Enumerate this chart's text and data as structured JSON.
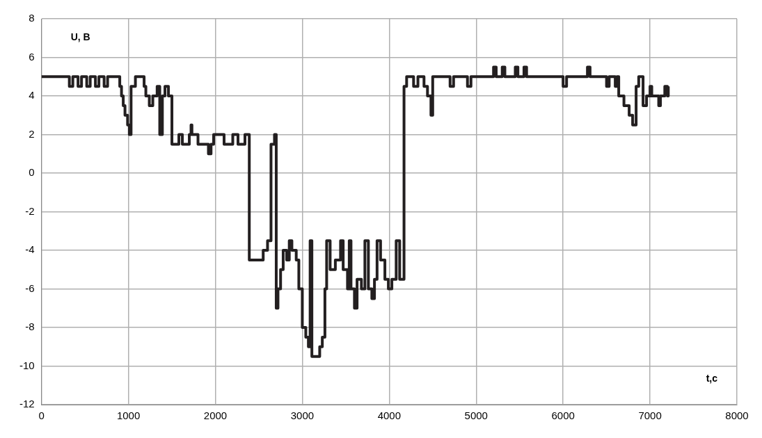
{
  "chart_data": {
    "type": "step",
    "xlabel": "t,c",
    "ylabel": "U, B",
    "xlim": [
      0,
      8000
    ],
    "xticks": [
      0,
      1000,
      2000,
      3000,
      4000,
      5000,
      6000,
      7000,
      8000
    ],
    "ylim": [
      -12,
      8
    ],
    "yticks": [
      -12,
      -10,
      -8,
      -6,
      -4,
      -2,
      0,
      2,
      4,
      6,
      8
    ],
    "grid": true,
    "legend": false,
    "marker": "none",
    "line_style": "solid",
    "series": [
      {
        "color": "#231f20",
        "x": [
          0,
          320,
          360,
          420,
          460,
          520,
          560,
          620,
          660,
          720,
          760,
          880,
          900,
          920,
          940,
          960,
          990,
          1010,
          1030,
          1080,
          1160,
          1180,
          1200,
          1240,
          1280,
          1330,
          1360,
          1390,
          1420,
          1460,
          1500,
          1580,
          1620,
          1700,
          1720,
          1730,
          1800,
          1880,
          1920,
          1950,
          1980,
          2100,
          2200,
          2260,
          2340,
          2390,
          2550,
          2600,
          2640,
          2680,
          2700,
          2720,
          2750,
          2780,
          2820,
          2850,
          2880,
          2930,
          2960,
          3000,
          3040,
          3070,
          3090,
          3110,
          3200,
          3230,
          3260,
          3280,
          3320,
          3380,
          3440,
          3470,
          3520,
          3540,
          3560,
          3600,
          3630,
          3680,
          3720,
          3760,
          3800,
          3830,
          3860,
          3900,
          3950,
          3990,
          4030,
          4080,
          4120,
          4170,
          4200,
          4280,
          4330,
          4400,
          4440,
          4480,
          4500,
          4700,
          4740,
          4900,
          4940,
          5200,
          5230,
          5300,
          5330,
          5450,
          5480,
          5550,
          5580,
          6000,
          6040,
          6280,
          6310,
          6500,
          6530,
          6600,
          6620,
          6640,
          6700,
          6760,
          6800,
          6840,
          6870,
          6920,
          6960,
          7000,
          7020,
          7100,
          7120,
          7170,
          7200,
          7210
        ],
        "values": [
          5,
          4.5,
          5,
          4.5,
          5,
          4.5,
          5,
          4.5,
          5,
          4.5,
          5,
          5,
          4.5,
          4,
          3.5,
          3,
          2.5,
          2,
          4.5,
          5,
          5,
          4.5,
          4,
          3.5,
          4,
          4.5,
          2,
          4,
          4.5,
          4,
          1.5,
          2,
          1.5,
          2,
          2.5,
          2,
          1.5,
          1.5,
          1,
          1.5,
          2,
          1.5,
          2,
          1.5,
          2,
          -4.5,
          -4,
          -3.5,
          1.5,
          2,
          -7,
          -6,
          -5,
          -4,
          -4.5,
          -3.5,
          -4,
          -4.5,
          -6,
          -8,
          -8.5,
          -9,
          -3.5,
          -9.5,
          -9,
          -8.5,
          -6,
          -3.5,
          -5,
          -4.5,
          -3.5,
          -5,
          -6,
          -3.5,
          -6,
          -7,
          -5.5,
          -6,
          -3.5,
          -6,
          -6.5,
          -5.5,
          -3.5,
          -4.5,
          -5.5,
          -6,
          -5.5,
          -3.5,
          -5.5,
          4.5,
          5,
          4.5,
          5,
          4.5,
          4,
          3,
          5,
          4.5,
          5,
          4.5,
          5,
          5.5,
          5,
          5.5,
          5,
          5.5,
          5,
          5.5,
          5,
          4.5,
          5,
          5.5,
          5,
          4.5,
          5,
          4.5,
          5,
          4,
          3.5,
          3,
          2.5,
          4.5,
          5,
          3.5,
          4,
          4.5,
          4,
          3.5,
          4,
          4.5,
          4,
          4.5
        ]
      }
    ]
  }
}
